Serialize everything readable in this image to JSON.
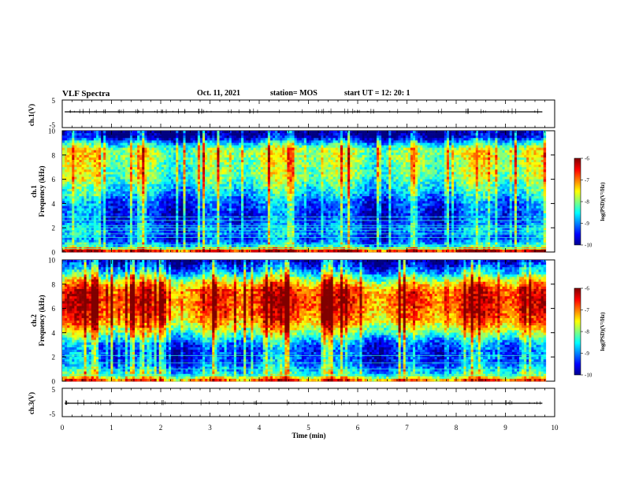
{
  "header": {
    "title": "VLF Spectra",
    "date": "Oct. 11, 2021",
    "station": "station= MOS",
    "start_ut": "start  UT  =    12: 20: 1"
  },
  "chart_data": [
    {
      "type": "line",
      "ylabel": "ch.1(V)",
      "ylim": [
        -5,
        5
      ],
      "yticks": [
        "5",
        "-5"
      ],
      "xlim": [
        0,
        10
      ],
      "series": [
        {
          "values": [
            [
              0.05,
              0
            ],
            [
              9.75,
              0
            ]
          ]
        }
      ]
    },
    {
      "type": "heatmap",
      "ylabel_line1": "ch.1",
      "ylabel_line2": "Frequency (kHz)",
      "ylim": [
        0,
        10
      ],
      "yticks": [
        "0",
        "2",
        "4",
        "6",
        "8",
        "10"
      ],
      "xlim": [
        0,
        10
      ],
      "colorbar": {
        "label": "log(PSD)(V²/Hz)",
        "range": [
          -10,
          -6
        ],
        "ticks": [
          "-6",
          "-7",
          "-8",
          "-9",
          "-10"
        ]
      },
      "band_profile_khz": [
        0.1,
        0.5,
        1.0,
        1.5,
        2.0,
        2.5,
        3.0,
        3.5,
        4.0,
        4.5,
        5.0,
        5.5,
        6.0,
        6.5,
        7.0,
        7.5,
        8.0,
        8.5,
        9.0,
        9.5,
        9.9
      ],
      "band_profile_level": [
        -6.5,
        -8.5,
        -9.3,
        -9.0,
        -9.0,
        -9.3,
        -9.4,
        -9.3,
        -9.2,
        -8.9,
        -8.6,
        -8.4,
        -8.1,
        -8.0,
        -8.0,
        -7.9,
        -7.8,
        -7.9,
        -8.8,
        -9.8,
        -10.0
      ],
      "lines_khz": [
        0.3,
        0.6,
        1.2,
        1.5,
        1.8,
        2.0,
        2.2,
        2.6,
        2.9
      ]
    },
    {
      "type": "heatmap",
      "ylabel_line1": "ch.2",
      "ylabel_line2": "Frequency (kHz)",
      "ylim": [
        0,
        10
      ],
      "yticks": [
        "0",
        "2",
        "4",
        "6",
        "8",
        "10"
      ],
      "xlim": [
        0,
        10
      ],
      "colorbar": {
        "label": "log(PSD)(V²/Hz)",
        "range": [
          -10,
          -6
        ],
        "ticks": [
          "-6",
          "-7",
          "-8",
          "-9",
          "-10"
        ]
      },
      "band_profile_khz": [
        0.1,
        0.5,
        1.0,
        1.5,
        2.0,
        2.5,
        3.0,
        3.5,
        4.0,
        4.5,
        5.0,
        5.5,
        6.0,
        6.5,
        7.0,
        7.5,
        8.0,
        8.5,
        9.0,
        9.5,
        9.9
      ],
      "band_profile_level": [
        -7.0,
        -8.3,
        -8.8,
        -9.2,
        -9.2,
        -9.3,
        -9.1,
        -8.6,
        -8.0,
        -7.5,
        -7.1,
        -6.9,
        -6.8,
        -6.7,
        -6.7,
        -6.8,
        -7.3,
        -8.0,
        -8.8,
        -9.4,
        -9.8
      ],
      "lines_khz": [
        0.5,
        1.0,
        1.5,
        2.1
      ]
    },
    {
      "type": "line",
      "ylabel": "ch.3(V)",
      "ylim": [
        -5,
        5
      ],
      "yticks": [
        "5",
        "-5"
      ],
      "xlim": [
        0,
        10
      ],
      "series": [
        {
          "values": [
            [
              0.05,
              0
            ],
            [
              9.75,
              0
            ]
          ]
        }
      ]
    }
  ],
  "xaxis": {
    "xlabel": "Time (min)",
    "xlim": [
      0,
      10
    ],
    "ticks": [
      "0",
      "1",
      "2",
      "3",
      "4",
      "5",
      "6",
      "7",
      "8",
      "9",
      "10"
    ]
  },
  "colors": {
    "jet": [
      "#00008f",
      "#0000ff",
      "#00ffff",
      "#ffff00",
      "#ff0000",
      "#800000"
    ],
    "text": "#000000",
    "background": "#ffffff"
  }
}
